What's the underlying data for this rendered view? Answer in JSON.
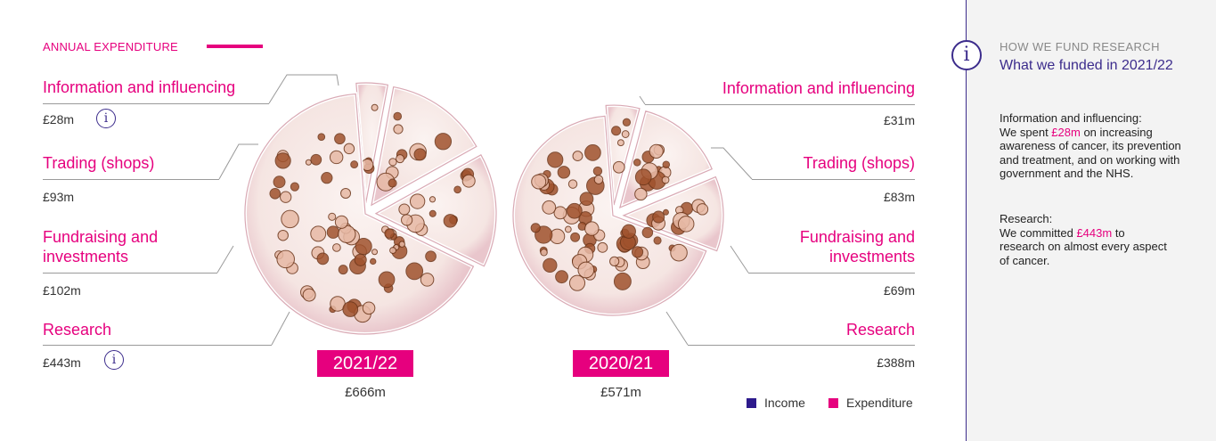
{
  "header": {
    "title": "ANNUAL EXPENDITURE"
  },
  "categories": [
    "Information and influencing",
    "Trading (shops)",
    "Fundraising and investments",
    "Research"
  ],
  "chart_data": [
    {
      "type": "pie",
      "title": "2021/22",
      "total_label": "£666m",
      "total": 666,
      "labels": [
        "Information and influencing",
        "Trading (shops)",
        "Fundraising and investments",
        "Research"
      ],
      "values": [
        28,
        93,
        102,
        443
      ],
      "value_labels": [
        "£28m",
        "£93m",
        "£102m",
        "£443m"
      ],
      "exploded": [
        true,
        true,
        true,
        false
      ]
    },
    {
      "type": "pie",
      "title": "2020/21",
      "total_label": "£571m",
      "total": 571,
      "labels": [
        "Information and influencing",
        "Trading (shops)",
        "Fundraising and investments",
        "Research"
      ],
      "values": [
        31,
        83,
        69,
        388
      ],
      "value_labels": [
        "£31m",
        "£83m",
        "£69m",
        "£388m"
      ],
      "exploded": [
        true,
        true,
        true,
        false
      ]
    }
  ],
  "left_labels": [
    {
      "label": "Information and influencing",
      "value": "£28m",
      "info": true
    },
    {
      "label": "Trading (shops)",
      "value": "£93m",
      "info": false
    },
    {
      "label": "Fundraising and investments",
      "value": "£102m",
      "info": false
    },
    {
      "label": "Research",
      "value": "£443m",
      "info": true
    }
  ],
  "right_labels": [
    {
      "label": "Information and influencing",
      "value": "£31m"
    },
    {
      "label": "Trading (shops)",
      "value": "£83m"
    },
    {
      "label": "Fundraising and investments",
      "value": "£69m"
    },
    {
      "label": "Research",
      "value": "£388m"
    }
  ],
  "years": {
    "left": "2021/22",
    "right": "2020/21"
  },
  "totals": {
    "left": "£666m",
    "right": "£571m"
  },
  "legend": [
    {
      "label": "Income",
      "color": "#2d1a8c"
    },
    {
      "label": "Expenditure",
      "color": "#e6007e"
    }
  ],
  "sidebar": {
    "eyebrow": "HOW WE FUND RESEARCH",
    "heading": "What we funded in 2021/22",
    "info_icon": "info-icon",
    "sections": [
      {
        "title": "Information and influencing:",
        "pre": "We spent ",
        "highlight": "£28m",
        "post": " on increasing awareness of cancer, its prevention and treatment, and on working with government and the NHS."
      },
      {
        "title": "Research:",
        "pre": "We committed ",
        "highlight": "£443m",
        "post": " to research on almost every aspect of cancer."
      }
    ]
  },
  "colors": {
    "accent": "#e6007e",
    "brand": "#3c2c8c",
    "dish": "#f7ece9",
    "colony": "#a0522d"
  }
}
